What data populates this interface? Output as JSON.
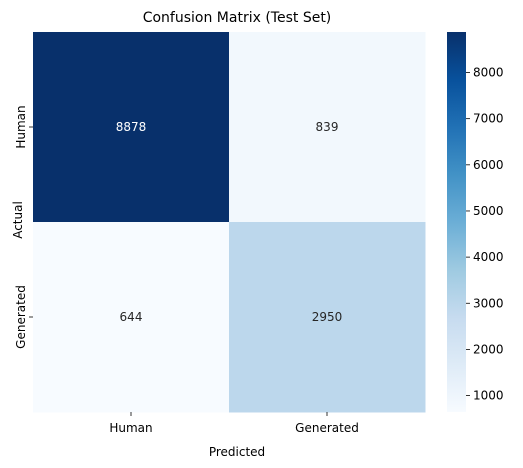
{
  "chart_data": {
    "type": "heatmap",
    "title": "Confusion Matrix (Test Set)",
    "xlabel": "Predicted",
    "ylabel": "Actual",
    "x_categories": [
      "Human",
      "Generated"
    ],
    "y_categories": [
      "Human",
      "Generated"
    ],
    "values": [
      [
        8878,
        839
      ],
      [
        644,
        2950
      ]
    ],
    "colormap": "Blues",
    "color_range": [
      644,
      8878
    ],
    "colorbar_ticks": [
      1000,
      2000,
      3000,
      4000,
      5000,
      6000,
      7000,
      8000
    ],
    "colorbar_tick_labels": [
      "1000",
      "2000",
      "3000",
      "4000",
      "5000",
      "6000",
      "7000",
      "8000"
    ],
    "legend": "colorbar-right"
  }
}
